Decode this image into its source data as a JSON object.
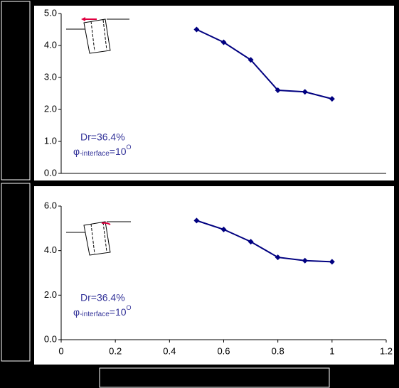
{
  "chart_data": [
    {
      "type": "line",
      "x": [
        0.5,
        0.6,
        0.7,
        0.8,
        0.9,
        1.0
      ],
      "series": [
        {
          "color": "#000080",
          "values": [
            4.5,
            4.1,
            3.55,
            2.6,
            2.55,
            2.33
          ]
        }
      ],
      "xlim": [
        0,
        1.2
      ],
      "ylim": [
        0,
        5
      ],
      "yticks": [
        {
          "value": 0,
          "label": "0.0"
        },
        {
          "value": 1,
          "label": "1.0"
        },
        {
          "value": 2,
          "label": "2.0"
        },
        {
          "value": 3,
          "label": "3.0"
        },
        {
          "value": 4,
          "label": "4.0"
        },
        {
          "value": 5,
          "label": "5.0"
        }
      ],
      "annotation": {
        "line1": "Dr=36.4%",
        "symbol": "φ",
        "sub": "-interface",
        "eq": "=10",
        "sup": "O"
      }
    },
    {
      "type": "line",
      "x": [
        0.5,
        0.6,
        0.7,
        0.8,
        0.9,
        1.0
      ],
      "series": [
        {
          "color": "#000080",
          "values": [
            5.35,
            4.95,
            4.4,
            3.7,
            3.55,
            3.5
          ]
        }
      ],
      "xlim": [
        0,
        1.2
      ],
      "ylim": [
        0,
        6
      ],
      "xticks": [
        0,
        0.2,
        0.4,
        0.6,
        0.8,
        1,
        1.2
      ],
      "yticks": [
        {
          "value": 0,
          "label": "0.0"
        },
        {
          "value": 2,
          "label": "2.0"
        },
        {
          "value": 4,
          "label": "4.0"
        },
        {
          "value": 6,
          "label": "6.0"
        }
      ],
      "annotation": {
        "line1": "Dr=36.4%",
        "symbol": "φ",
        "sub": "-interface",
        "eq": "=10",
        "sup": "O"
      }
    }
  ]
}
